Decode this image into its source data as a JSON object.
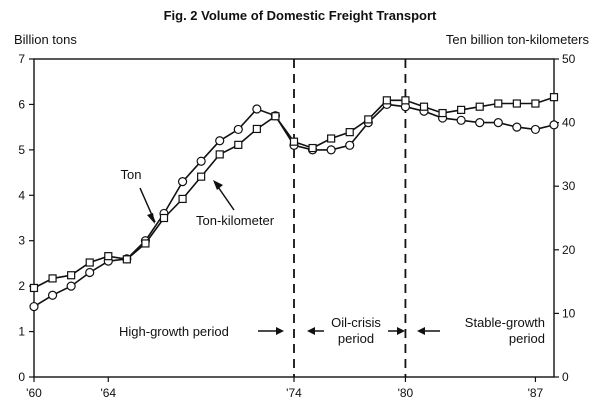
{
  "chart_data": {
    "type": "line",
    "title": "Fig. 2 Volume of Domestic Freight Transport",
    "ylabel_left": "Billion tons",
    "ylabel_right": "Ten billion ton-kilometers",
    "ylim_left": [
      0,
      7
    ],
    "ylim_right": [
      0,
      50
    ],
    "yticks_left": [
      "0",
      "1",
      "2",
      "3",
      "4",
      "5",
      "6",
      "7"
    ],
    "yticks_right": [
      "0",
      "10",
      "20",
      "30",
      "40",
      "50"
    ],
    "x_range": [
      1960,
      1988
    ],
    "x_tick_labels": [
      {
        "year": 1960,
        "label": "'60"
      },
      {
        "year": 1964,
        "label": "'64"
      },
      {
        "year": 1974,
        "label": "'74"
      },
      {
        "year": 1980,
        "label": "'80"
      },
      {
        "year": 1987,
        "label": "'87"
      }
    ],
    "dividers": [
      1974,
      1980
    ],
    "grid": false,
    "series": [
      {
        "name": "Ton",
        "axis": "left",
        "marker": "circle",
        "x": [
          1960,
          1961,
          1962,
          1963,
          1964,
          1965,
          1966,
          1967,
          1968,
          1969,
          1970,
          1971,
          1972,
          1973,
          1974,
          1975,
          1976,
          1977,
          1978,
          1979,
          1980,
          1981,
          1982,
          1983,
          1984,
          1985,
          1986,
          1987,
          1988
        ],
        "values": [
          1.55,
          1.8,
          2.0,
          2.3,
          2.55,
          2.6,
          3.0,
          3.6,
          4.3,
          4.75,
          5.2,
          5.45,
          5.9,
          5.75,
          5.1,
          5.0,
          5.0,
          5.1,
          5.6,
          6.0,
          5.95,
          5.85,
          5.7,
          5.65,
          5.6,
          5.6,
          5.5,
          5.45,
          5.55
        ]
      },
      {
        "name": "Ton-kilometer",
        "axis": "right",
        "marker": "square",
        "x": [
          1960,
          1961,
          1962,
          1963,
          1964,
          1965,
          1966,
          1967,
          1968,
          1969,
          1970,
          1971,
          1972,
          1973,
          1974,
          1975,
          1976,
          1977,
          1978,
          1979,
          1980,
          1981,
          1982,
          1983,
          1984,
          1985,
          1986,
          1987,
          1988
        ],
        "values": [
          14,
          15.5,
          16,
          18,
          19,
          18.5,
          21,
          25,
          28,
          31.5,
          35,
          36.5,
          39,
          41,
          37,
          36,
          37.5,
          38.5,
          40.5,
          43.5,
          43.5,
          42.5,
          41.5,
          42,
          42.5,
          43,
          43,
          43,
          44
        ]
      }
    ],
    "annotations": [
      {
        "text": "Ton",
        "lines": [
          "Ton"
        ]
      },
      {
        "text": "Ton-kilometer",
        "lines": [
          "Ton-kilometer"
        ]
      },
      {
        "text": "High-growth period",
        "lines": [
          "High-growth period"
        ]
      },
      {
        "text": "Oil-crisis period",
        "lines": [
          "Oil-crisis",
          "period"
        ]
      },
      {
        "text": "Stable-growth period",
        "lines": [
          "Stable-growth",
          "period"
        ]
      }
    ]
  }
}
